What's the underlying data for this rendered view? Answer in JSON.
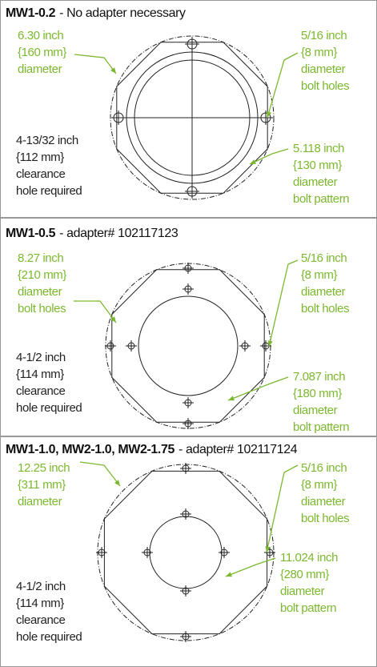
{
  "panels": [
    {
      "model": "MW1-0.2",
      "note": "- No adapter necessary",
      "outer": [
        "6.30 inch",
        "{160 mm}",
        "diameter"
      ],
      "bolt": [
        "5/16 inch",
        "{8 mm}",
        "diameter",
        "bolt holes"
      ],
      "clearance": [
        "4-13/32 inch",
        "{112 mm}",
        "clearance",
        "hole required"
      ],
      "pattern": [
        "5.118 inch",
        "{130 mm}",
        "diameter",
        "bolt pattern"
      ]
    },
    {
      "model": "MW1-0.5",
      "note": "- adapter# 102117123",
      "outer": [
        "8.27 inch",
        "{210 mm}",
        "diameter",
        "bolt holes"
      ],
      "bolt": [
        "5/16 inch",
        "{8 mm}",
        "diameter",
        "bolt holes"
      ],
      "clearance": [
        "4-1/2 inch",
        "{114 mm}",
        "clearance",
        "hole required"
      ],
      "pattern": [
        "7.087 inch",
        "{180 mm}",
        "diameter",
        "bolt pattern"
      ]
    },
    {
      "model": "MW1-1.0, MW2-1.0, MW2-1.75",
      "note": "- adapter# 102117124",
      "outer": [
        "12.25 inch",
        "{311 mm}",
        "diameter"
      ],
      "bolt": [
        "5/16 inch",
        "{8 mm}",
        "diameter",
        "bolt holes"
      ],
      "clearance": [
        "4-1/2 inch",
        "{114 mm}",
        "clearance",
        "hole required"
      ],
      "pattern": [
        "11.024 inch",
        "{280 mm}",
        "diameter",
        "bolt pattern"
      ]
    }
  ]
}
